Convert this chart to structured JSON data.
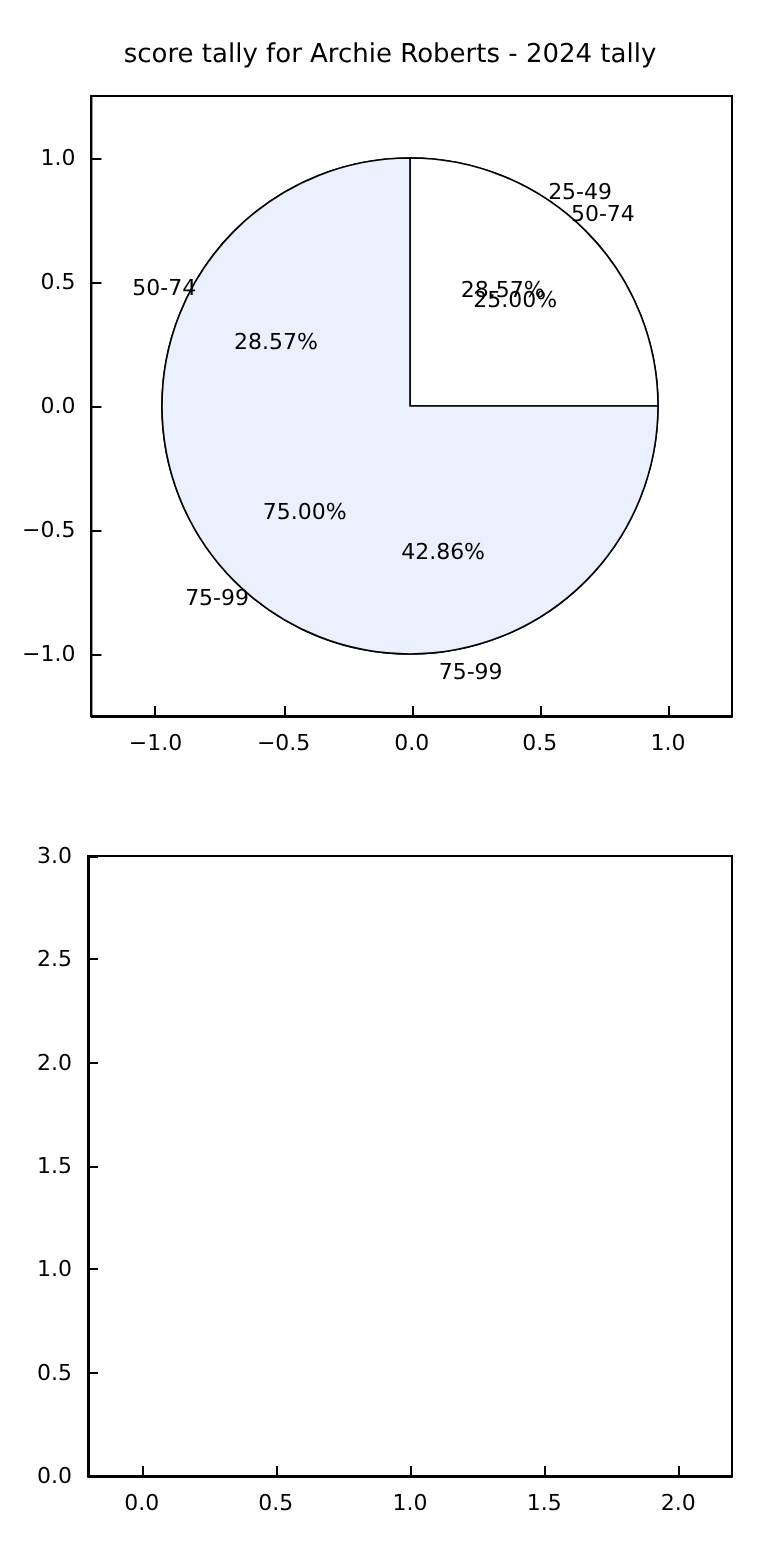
{
  "chart_data": [
    {
      "type": "scatter",
      "title": "score tally for Archie Roberts - 2024 tally",
      "xlim": [
        -1.25,
        1.25
      ],
      "ylim": [
        -1.25,
        1.25
      ],
      "xticks": [
        {
          "value": -1,
          "label": "−1.0"
        },
        {
          "value": -0.5,
          "label": "−0.5"
        },
        {
          "value": 0,
          "label": "0.0"
        },
        {
          "value": 0.5,
          "label": "0.5"
        },
        {
          "value": 1,
          "label": "1.0"
        }
      ],
      "yticks": [
        {
          "value": -1,
          "label": "−1.0"
        },
        {
          "value": -0.5,
          "label": "−0.5"
        },
        {
          "value": 0,
          "label": "0.0"
        },
        {
          "value": 0.5,
          "label": "0.5"
        },
        {
          "value": 1,
          "label": "1.0"
        }
      ]
    },
    {
      "type": "pie",
      "categories": [
        "25-49",
        "50-74",
        "75-99"
      ],
      "values": [
        28.57,
        28.57,
        42.86
      ],
      "colors": [
        "#ffffff",
        "#eaf0fb",
        "#bcd0ee"
      ],
      "value_labels": [
        "28.57%",
        "28.57%",
        "42.86%"
      ]
    },
    {
      "type": "pie",
      "categories": [
        "50-74",
        "75-99"
      ],
      "values": [
        25,
        75
      ],
      "colors": [
        "#ffffff",
        "#eaf0fd"
      ],
      "value_labels": [
        "25.00%",
        "75.00%"
      ]
    },
    {
      "type": "scatter",
      "xlim": [
        -0.2,
        2.2
      ],
      "ylim": [
        0,
        3
      ],
      "xticks": [
        {
          "value": 0,
          "label": "0.0"
        },
        {
          "value": 0.5,
          "label": "0.5"
        },
        {
          "value": 1,
          "label": "1.0"
        },
        {
          "value": 1.5,
          "label": "1.5"
        },
        {
          "value": 2,
          "label": "2.0"
        }
      ],
      "yticks": [
        {
          "value": 0,
          "label": "0.0"
        },
        {
          "value": 0.5,
          "label": "0.5"
        },
        {
          "value": 1,
          "label": "1.0"
        },
        {
          "value": 1.5,
          "label": "1.5"
        },
        {
          "value": 2,
          "label": "2.0"
        },
        {
          "value": 2.5,
          "label": "2.5"
        },
        {
          "value": 3,
          "label": "3.0"
        }
      ]
    }
  ]
}
